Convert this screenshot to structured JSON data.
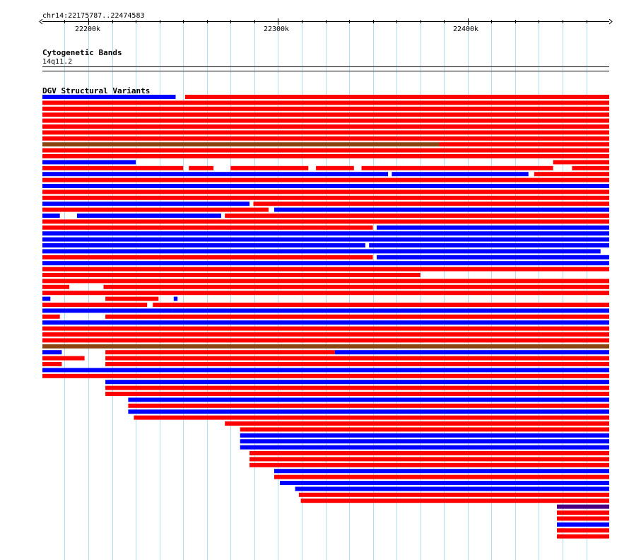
{
  "location": "chr14:22175787..22474583",
  "ruler": {
    "ticks": [
      "22200k",
      "22300k",
      "22400k"
    ]
  },
  "tracks": {
    "cytoband": {
      "title": "Cytogenetic Bands",
      "band": "14q11.2"
    },
    "dgv": {
      "title": "DGV Structural Variants"
    }
  },
  "colors": {
    "loss": "#ff0000",
    "gain": "#0000ff",
    "inversion": "#8b4513",
    "other": "#4b0082",
    "grid": "#b0e0f0"
  },
  "chart_data": {
    "type": "genome-browser",
    "chrom": "chr14",
    "range": [
      22175787,
      22474583
    ],
    "x_ticks_k": [
      22200,
      22300,
      22400
    ],
    "minor_tick_step": 12500,
    "features": [
      [
        0,
        22175787,
        22246000,
        "gain"
      ],
      [
        0,
        22251000,
        22474583,
        "loss"
      ],
      [
        1,
        22175787,
        22474583,
        "loss"
      ],
      [
        2,
        22175787,
        22474583,
        "loss"
      ],
      [
        3,
        22175787,
        22474583,
        "loss"
      ],
      [
        4,
        22175787,
        22474583,
        "loss"
      ],
      [
        5,
        22175787,
        22474583,
        "loss"
      ],
      [
        6,
        22175787,
        22474583,
        "loss"
      ],
      [
        7,
        22175787,
        22474583,
        "loss"
      ],
      [
        8,
        22175787,
        22385000,
        "inversion"
      ],
      [
        8,
        22385000,
        22474583,
        "loss"
      ],
      [
        9,
        22175787,
        22474583,
        "loss"
      ],
      [
        10,
        22175787,
        22474583,
        "loss"
      ],
      [
        11,
        22175787,
        22225000,
        "gain"
      ],
      [
        11,
        22445000,
        22474583,
        "loss"
      ],
      [
        12,
        22175787,
        22250000,
        "loss"
      ],
      [
        12,
        22253000,
        22266000,
        "loss"
      ],
      [
        12,
        22275000,
        22316000,
        "loss"
      ],
      [
        12,
        22320000,
        22340000,
        "loss"
      ],
      [
        12,
        22344000,
        22445000,
        "loss"
      ],
      [
        12,
        22455000,
        22474583,
        "loss"
      ],
      [
        13,
        22175787,
        22358000,
        "gain"
      ],
      [
        13,
        22360000,
        22432000,
        "gain"
      ],
      [
        13,
        22435000,
        22474583,
        "loss"
      ],
      [
        14,
        22175787,
        22474583,
        "loss"
      ],
      [
        15,
        22175787,
        22474583,
        "gain"
      ],
      [
        16,
        22175787,
        22474583,
        "loss"
      ],
      [
        17,
        22175787,
        22474583,
        "loss"
      ],
      [
        18,
        22175787,
        22285000,
        "gain"
      ],
      [
        18,
        22287000,
        22474583,
        "loss"
      ],
      [
        19,
        22175787,
        22295000,
        "loss"
      ],
      [
        19,
        22298000,
        22474583,
        "gain"
      ],
      [
        20,
        22175787,
        22185000,
        "gain"
      ],
      [
        20,
        22194000,
        22270000,
        "gain"
      ],
      [
        20,
        22272000,
        22474583,
        "loss"
      ],
      [
        21,
        22175787,
        22474583,
        "loss"
      ],
      [
        22,
        22175787,
        22350000,
        "loss"
      ],
      [
        22,
        22352000,
        22474583,
        "gain"
      ],
      [
        23,
        22175787,
        22474583,
        "gain"
      ],
      [
        24,
        22175787,
        22475000,
        "gain"
      ],
      [
        25,
        22175787,
        22346000,
        "gain"
      ],
      [
        25,
        22348000,
        22474583,
        "gain"
      ],
      [
        26,
        22175787,
        22470000,
        "gain"
      ],
      [
        27,
        22175787,
        22350000,
        "loss"
      ],
      [
        27,
        22352000,
        22474583,
        "gain"
      ],
      [
        28,
        22175787,
        22474583,
        "gain"
      ],
      [
        29,
        22175787,
        22474583,
        "loss"
      ],
      [
        30,
        22175787,
        22375000,
        "loss"
      ],
      [
        31,
        22175787,
        22474583,
        "loss"
      ],
      [
        32,
        22175787,
        22190000,
        "loss"
      ],
      [
        32,
        22208000,
        22474583,
        "loss"
      ],
      [
        33,
        22175787,
        22474583,
        "loss"
      ],
      [
        34,
        22175787,
        22180000,
        "gain"
      ],
      [
        34,
        22209000,
        22237000,
        "loss"
      ],
      [
        34,
        22245000,
        22247000,
        "gain"
      ],
      [
        35,
        22175787,
        22231000,
        "loss"
      ],
      [
        35,
        22234000,
        22474583,
        "loss"
      ],
      [
        36,
        22175787,
        22244000,
        "gain"
      ],
      [
        36,
        22244000,
        22474583,
        "gain"
      ],
      [
        37,
        22175787,
        22185000,
        "loss"
      ],
      [
        37,
        22209000,
        22474583,
        "loss"
      ],
      [
        38,
        22175787,
        22474583,
        "gain"
      ],
      [
        39,
        22175787,
        22474583,
        "loss"
      ],
      [
        40,
        22175787,
        22474583,
        "loss"
      ],
      [
        41,
        22175787,
        22474583,
        "loss"
      ],
      [
        42,
        22175787,
        22474583,
        "inversion"
      ],
      [
        43,
        22175787,
        22186000,
        "gain"
      ],
      [
        43,
        22209000,
        22330000,
        "loss"
      ],
      [
        43,
        22330000,
        22474583,
        "gain"
      ],
      [
        44,
        22175787,
        22198000,
        "loss"
      ],
      [
        44,
        22209000,
        22474583,
        "loss"
      ],
      [
        45,
        22175787,
        22186000,
        "loss"
      ],
      [
        45,
        22209000,
        22474583,
        "loss"
      ],
      [
        46,
        22175787,
        22474583,
        "gain"
      ],
      [
        47,
        22175787,
        22474583,
        "loss"
      ],
      [
        48,
        22209000,
        22474583,
        "gain"
      ],
      [
        49,
        22209000,
        22474583,
        "loss"
      ],
      [
        50,
        22209000,
        22474583,
        "loss"
      ],
      [
        51,
        22221000,
        22474583,
        "gain"
      ],
      [
        52,
        22221000,
        22474583,
        "loss"
      ],
      [
        53,
        22221000,
        22474583,
        "gain"
      ],
      [
        54,
        22224000,
        22474583,
        "loss"
      ],
      [
        55,
        22272000,
        22474583,
        "loss"
      ],
      [
        56,
        22280000,
        22474583,
        "loss"
      ],
      [
        57,
        22280000,
        22474583,
        "gain"
      ],
      [
        58,
        22280000,
        22474583,
        "gain"
      ],
      [
        59,
        22280000,
        22474583,
        "gain"
      ],
      [
        60,
        22285000,
        22474583,
        "loss"
      ],
      [
        61,
        22285000,
        22474583,
        "loss"
      ],
      [
        62,
        22285000,
        22474583,
        "loss"
      ],
      [
        63,
        22298000,
        22474583,
        "gain"
      ],
      [
        64,
        22298000,
        22474583,
        "loss"
      ],
      [
        65,
        22301000,
        22474583,
        "gain"
      ],
      [
        66,
        22309000,
        22474583,
        "gain"
      ],
      [
        67,
        22311000,
        22474583,
        "loss"
      ],
      [
        68,
        22312000,
        22474583,
        "loss"
      ],
      [
        69,
        22447000,
        22474583,
        "other"
      ],
      [
        70,
        22447000,
        22474583,
        "loss"
      ],
      [
        71,
        22447000,
        22474583,
        "loss"
      ],
      [
        72,
        22447000,
        22474583,
        "gain"
      ],
      [
        73,
        22447000,
        22474583,
        "loss"
      ],
      [
        74,
        22447000,
        22474583,
        "loss"
      ]
    ]
  }
}
